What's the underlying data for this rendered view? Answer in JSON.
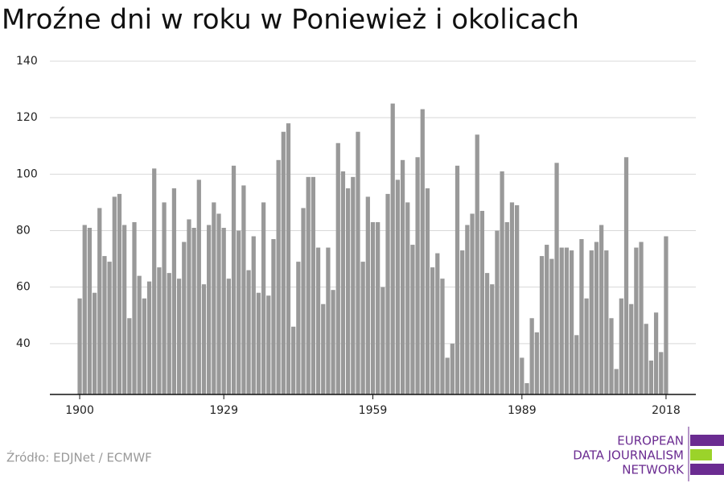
{
  "chart_data": {
    "type": "bar",
    "title": "Mroźne dni w roku w Poniewież i okolicach",
    "x": [
      1900,
      1901,
      1902,
      1903,
      1904,
      1905,
      1906,
      1907,
      1908,
      1909,
      1910,
      1911,
      1912,
      1913,
      1914,
      1915,
      1916,
      1917,
      1918,
      1919,
      1920,
      1921,
      1922,
      1923,
      1924,
      1925,
      1926,
      1927,
      1928,
      1929,
      1930,
      1931,
      1932,
      1933,
      1934,
      1935,
      1936,
      1937,
      1938,
      1939,
      1940,
      1941,
      1942,
      1943,
      1944,
      1945,
      1946,
      1947,
      1948,
      1949,
      1950,
      1951,
      1952,
      1953,
      1954,
      1955,
      1956,
      1957,
      1958,
      1959,
      1960,
      1961,
      1962,
      1963,
      1964,
      1965,
      1966,
      1967,
      1968,
      1969,
      1970,
      1971,
      1972,
      1973,
      1974,
      1975,
      1976,
      1977,
      1978,
      1979,
      1980,
      1981,
      1982,
      1983,
      1984,
      1985,
      1986,
      1987,
      1988,
      1989,
      1990,
      1991,
      1992,
      1993,
      1994,
      1995,
      1996,
      1997,
      1998,
      1999,
      2000,
      2001,
      2002,
      2003,
      2004,
      2005,
      2006,
      2007,
      2008,
      2009,
      2010,
      2011,
      2012,
      2013,
      2014,
      2015,
      2016,
      2017,
      2018
    ],
    "values": [
      56,
      82,
      81,
      58,
      88,
      71,
      69,
      92,
      93,
      82,
      49,
      83,
      64,
      56,
      62,
      102,
      67,
      90,
      65,
      95,
      63,
      76,
      84,
      81,
      98,
      61,
      82,
      90,
      86,
      81,
      63,
      103,
      80,
      96,
      66,
      78,
      58,
      90,
      57,
      77,
      105,
      115,
      118,
      46,
      69,
      88,
      99,
      99,
      74,
      54,
      74,
      59,
      111,
      101,
      95,
      99,
      115,
      69,
      92,
      83,
      83,
      60,
      93,
      125,
      98,
      105,
      90,
      75,
      106,
      123,
      95,
      67,
      72,
      63,
      35,
      40,
      103,
      73,
      82,
      86,
      114,
      87,
      65,
      61,
      80,
      101,
      83,
      90,
      89,
      35,
      26,
      49,
      44,
      71,
      75,
      70,
      104,
      74,
      74,
      73,
      43,
      77,
      56,
      73,
      76,
      82,
      73,
      49,
      31,
      56,
      106,
      54,
      74,
      76,
      47,
      34,
      51,
      37,
      78
    ],
    "color": "#999999",
    "xlim": [
      1894,
      2024
    ],
    "xticks": [
      1900,
      1929,
      1959,
      1989,
      2018
    ],
    "ylim": [
      22,
      140
    ],
    "yticks": [
      40,
      60,
      80,
      100,
      120,
      140
    ],
    "grid": true
  },
  "source": "Źródło: EDJNet / ECMWF",
  "logo": [
    "EUROPEAN",
    "DATA JOURNALISM",
    "NETWORK"
  ]
}
